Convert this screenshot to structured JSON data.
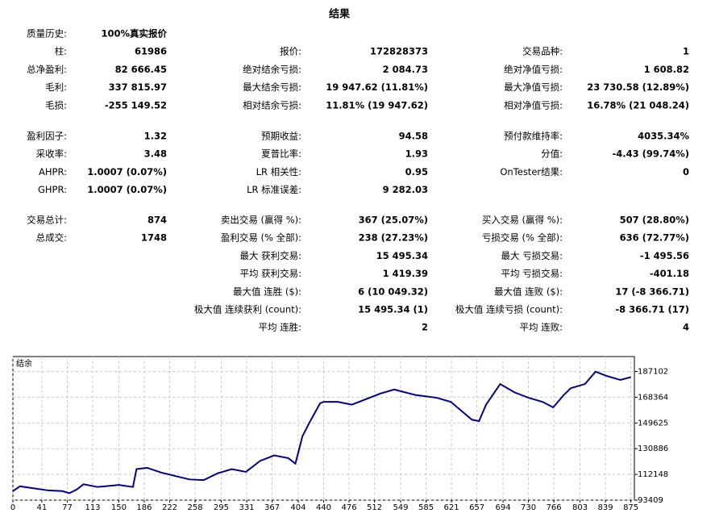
{
  "title": "结果",
  "groups": [
    [
      {
        "left": {
          "label": "质量历史:",
          "value": "100%真实报价"
        }
      },
      {
        "left": {
          "label": "柱:",
          "value": "61986"
        },
        "middle": {
          "label": "报价:",
          "value": "172828373"
        },
        "right": {
          "label": "交易品种:",
          "value": "1"
        }
      },
      {
        "left": {
          "label": "总净盈利:",
          "value": "82 666.45"
        },
        "middle": {
          "label": "绝对结余亏损:",
          "value": "2 084.73"
        },
        "right": {
          "label": "绝对净值亏损:",
          "value": "1 608.82"
        }
      },
      {
        "left": {
          "label": "毛利:",
          "value": "337 815.97"
        },
        "middle": {
          "label": "最大结余亏损:",
          "value": "19 947.62 (11.81%)"
        },
        "right": {
          "label": "最大净值亏损:",
          "value": "23 730.58 (12.89%)"
        }
      },
      {
        "left": {
          "label": "毛损:",
          "value": "-255 149.52"
        },
        "middle": {
          "label": "相对结余亏损:",
          "value": "11.81% (19 947.62)"
        },
        "right": {
          "label": "相对净值亏损:",
          "value": "16.78% (21 048.24)"
        }
      }
    ],
    [
      {
        "left": {
          "label": "盈利因子:",
          "value": "1.32"
        },
        "middle": {
          "label": "预期收益:",
          "value": "94.58"
        },
        "right": {
          "label": "预付款维持率:",
          "value": "4035.34%"
        }
      },
      {
        "left": {
          "label": "采收率:",
          "value": "3.48"
        },
        "middle": {
          "label": "夏普比率:",
          "value": "1.93"
        },
        "right": {
          "label": "分值:",
          "value": "-4.43 (99.74%)"
        }
      },
      {
        "left": {
          "label": "AHPR:",
          "value": "1.0007 (0.07%)"
        },
        "middle": {
          "label": "LR 相关性:",
          "value": "0.95"
        },
        "right": {
          "label": "OnTester结果:",
          "value": "0"
        }
      },
      {
        "left": {
          "label": "GHPR:",
          "value": "1.0007 (0.07%)"
        },
        "middle": {
          "label": "LR 标准误差:",
          "value": "9 282.03"
        }
      }
    ],
    [
      {
        "left": {
          "label": "交易总计:",
          "value": "874"
        },
        "middle": {
          "label": "卖出交易 (赢得 %):",
          "value": "367 (25.07%)"
        },
        "right": {
          "label": "买入交易 (赢得 %):",
          "value": "507 (28.80%)"
        }
      },
      {
        "left": {
          "label": "总成交:",
          "value": "1748"
        },
        "middle": {
          "label": "盈利交易 (% 全部):",
          "value": "238 (27.23%)"
        },
        "right": {
          "label": "亏损交易 (% 全部):",
          "value": "636 (72.77%)"
        }
      },
      {
        "middle": {
          "label": "最大 获利交易:",
          "value": "15 495.34"
        },
        "right": {
          "label": "最大 亏损交易:",
          "value": "-1 495.56"
        }
      },
      {
        "middle": {
          "label": "平均 获利交易:",
          "value": "1 419.39"
        },
        "right": {
          "label": "平均 亏损交易:",
          "value": "-401.18"
        }
      },
      {
        "middle": {
          "label": "最大值 连胜 ($):",
          "value": "6 (10 049.32)"
        },
        "right": {
          "label": "最大值 连败 ($):",
          "value": "17 (-8 366.71)"
        }
      },
      {
        "middle": {
          "label": "极大值 连续获利 (count):",
          "value": "15 495.34 (1)"
        },
        "right": {
          "label": "极大值 连续亏损 (count):",
          "value": "-8 366.71 (17)"
        }
      },
      {
        "middle": {
          "label": "平均 连胜:",
          "value": "2"
        },
        "right": {
          "label": "平均 连败:",
          "value": "4"
        }
      }
    ]
  ],
  "chart_data": {
    "type": "line",
    "x": [
      0,
      10,
      30,
      50,
      70,
      80,
      90,
      100,
      120,
      150,
      170,
      175,
      190,
      210,
      230,
      250,
      270,
      290,
      310,
      330,
      350,
      370,
      390,
      400,
      410,
      420,
      435,
      440,
      460,
      480,
      500,
      520,
      540,
      570,
      600,
      620,
      650,
      660,
      670,
      690,
      710,
      730,
      750,
      765,
      780,
      790,
      810,
      825,
      840,
      860,
      875
    ],
    "series": [
      {
        "name": "结余",
        "color": "#00008b",
        "values": [
          100000,
          103500,
          102000,
          100500,
          100000,
          98500,
          101000,
          105000,
          103000,
          104500,
          103000,
          116000,
          117000,
          113500,
          111000,
          108500,
          108000,
          113000,
          116000,
          114000,
          122000,
          126000,
          124000,
          120000,
          140000,
          150000,
          164000,
          165000,
          165000,
          163000,
          167000,
          171000,
          174000,
          170000,
          168000,
          165000,
          152000,
          151000,
          163000,
          178000,
          172000,
          168000,
          165000,
          161000,
          170000,
          175000,
          178000,
          187000,
          184000,
          181000,
          183000
        ]
      }
    ],
    "xlim": [
      0,
      880
    ],
    "ylim": [
      93409,
      198000
    ],
    "xticks": [
      0,
      41,
      77,
      113,
      150,
      186,
      222,
      258,
      295,
      331,
      367,
      404,
      440,
      476,
      512,
      549,
      585,
      621,
      657,
      694,
      730,
      766,
      803,
      839,
      875
    ],
    "yticks": [
      93409,
      112148,
      130886,
      149625,
      168364,
      187102
    ],
    "grid": true
  }
}
